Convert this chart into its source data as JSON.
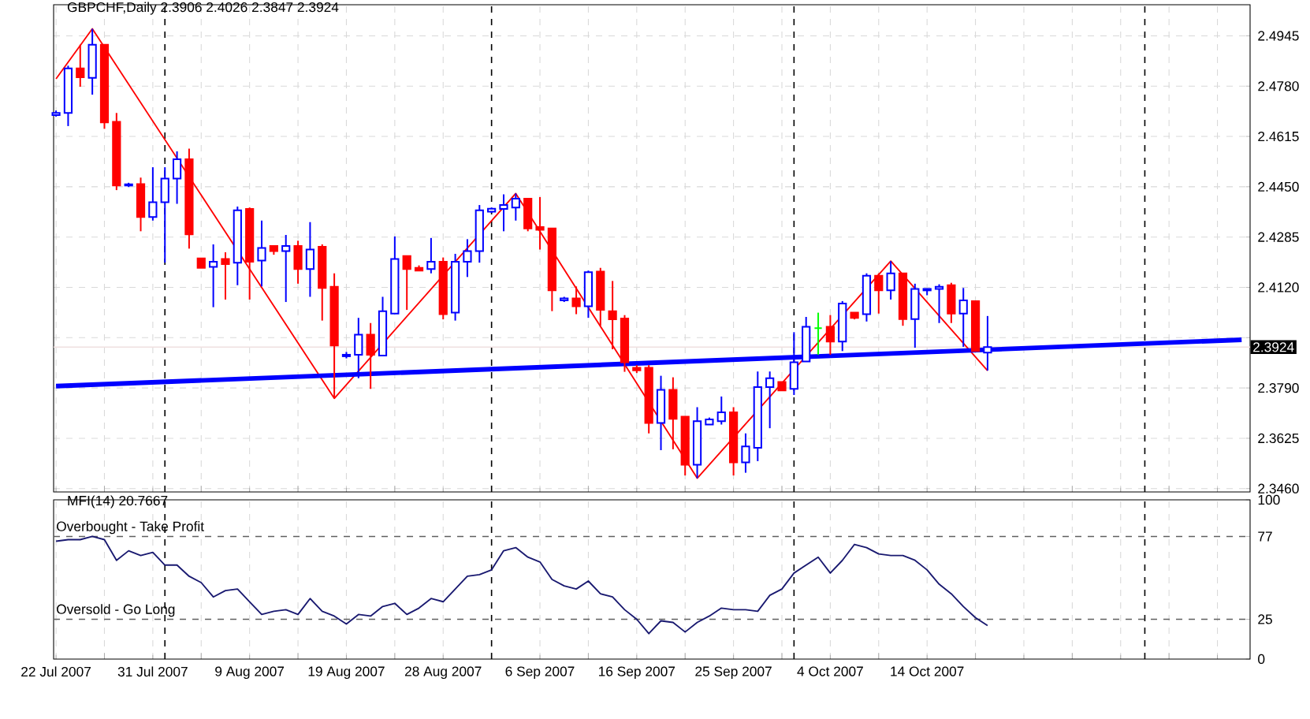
{
  "chart_data": [
    {
      "type": "candlestick",
      "title": "GBPCHF,Daily 2.3906 2.4026 2.3847 2.3924",
      "categories": [
        null,
        null,
        null,
        null,
        null,
        null,
        null,
        null,
        null,
        null,
        null,
        null,
        null,
        null,
        null,
        null,
        null,
        null,
        null,
        null,
        null,
        null,
        null,
        null,
        null,
        null,
        null,
        null,
        null,
        null,
        null,
        null,
        null,
        null,
        null,
        null,
        null,
        null,
        null,
        null,
        null,
        null,
        null,
        null,
        null,
        null,
        null,
        null,
        null,
        null,
        null,
        null,
        null,
        null,
        null,
        null,
        null,
        null,
        null,
        null,
        null,
        null,
        null,
        null,
        null,
        null,
        null,
        null,
        null,
        null,
        null,
        null,
        null,
        null,
        null,
        null,
        null,
        null,
        null,
        null,
        null,
        null,
        null,
        null,
        null,
        null,
        null,
        null,
        null,
        null,
        null,
        null,
        null,
        null,
        null,
        null,
        null,
        null,
        null
      ],
      "ohlc": [
        [
          2.4685,
          2.47,
          2.468,
          2.4692
        ],
        [
          2.4692,
          2.4847,
          2.4649,
          2.4838
        ],
        [
          2.4838,
          2.4916,
          2.4778,
          2.4809
        ],
        [
          2.4807,
          2.4968,
          2.4752,
          2.4916
        ],
        [
          2.4916,
          2.4916,
          2.464,
          2.4661
        ],
        [
          2.4663,
          2.4692,
          2.4439,
          2.4454
        ],
        [
          2.4454,
          2.4463,
          2.4449,
          2.4458
        ],
        [
          2.4459,
          2.448,
          2.4304,
          2.4351
        ],
        [
          2.4351,
          2.4514,
          2.4339,
          2.4399
        ],
        [
          2.4399,
          2.4514,
          2.4201,
          2.4477
        ],
        [
          2.4477,
          2.4566,
          2.4394,
          2.454
        ],
        [
          2.454,
          2.4575,
          2.4247,
          2.4294
        ],
        [
          2.4215,
          2.4215,
          2.4184,
          2.4184
        ],
        [
          2.4187,
          2.4261,
          2.4055,
          2.4204
        ],
        [
          2.4213,
          2.4235,
          2.408,
          2.4196
        ],
        [
          2.4201,
          2.4385,
          2.4127,
          2.4373
        ],
        [
          2.4377,
          2.4382,
          2.408,
          2.4204
        ],
        [
          2.4208,
          2.4339,
          2.4123,
          2.4249
        ],
        [
          2.4256,
          2.4256,
          2.4227,
          2.4239
        ],
        [
          2.4239,
          2.4292,
          2.4072,
          2.4256
        ],
        [
          2.4256,
          2.4273,
          2.4132,
          2.418
        ],
        [
          2.418,
          2.4334,
          2.4089,
          2.4244
        ],
        [
          2.4253,
          2.4261,
          2.4011,
          2.4118
        ],
        [
          2.4122,
          2.4166,
          2.3756,
          2.3929
        ],
        [
          2.3894,
          2.3908,
          2.3887,
          2.3899
        ],
        [
          2.3899,
          2.402,
          2.3822,
          2.3965
        ],
        [
          2.3965,
          2.4003,
          2.3787,
          2.3899
        ],
        [
          2.3896,
          2.4089,
          2.3896,
          2.4042
        ],
        [
          2.4034,
          2.4287,
          2.4034,
          2.4213
        ],
        [
          2.4223,
          2.4223,
          2.4046,
          2.418
        ],
        [
          2.4184,
          2.4192,
          2.4175,
          2.4175
        ],
        [
          2.418,
          2.4282,
          2.4166,
          2.4204
        ],
        [
          2.4204,
          2.4218,
          2.4015,
          2.4032
        ],
        [
          2.4037,
          2.423,
          2.4011,
          2.4204
        ],
        [
          2.4204,
          2.4278,
          2.4154,
          2.4239
        ],
        [
          2.4239,
          2.439,
          2.4201,
          2.4373
        ],
        [
          2.4368,
          2.4382,
          2.4364,
          2.4378
        ],
        [
          2.4377,
          2.4425,
          2.4304,
          2.439
        ],
        [
          2.4382,
          2.4428,
          2.4339,
          2.4411
        ],
        [
          2.4411,
          2.4411,
          2.4304,
          2.4313
        ],
        [
          2.4318,
          2.4416,
          2.4244,
          2.4309
        ],
        [
          2.4313,
          2.4313,
          2.4042,
          2.411
        ],
        [
          2.4077,
          2.4089,
          2.4072,
          2.4084
        ],
        [
          2.4084,
          2.4123,
          2.4032,
          2.4058
        ],
        [
          2.4058,
          2.4175,
          2.402,
          2.417
        ],
        [
          2.4172,
          2.4184,
          2.3994,
          2.4046
        ],
        [
          2.4042,
          2.4141,
          2.3917,
          2.4015
        ],
        [
          2.4018,
          2.4029,
          2.3843,
          2.3874
        ],
        [
          2.3856,
          2.3865,
          2.3839,
          2.3848
        ],
        [
          2.3856,
          2.3865,
          2.3641,
          2.3675
        ],
        [
          2.3675,
          2.383,
          2.3586,
          2.3784
        ],
        [
          2.3784,
          2.3825,
          2.3589,
          2.3689
        ],
        [
          2.3696,
          2.3696,
          2.3503,
          2.3538
        ],
        [
          2.3538,
          2.3727,
          2.3494,
          2.3681
        ],
        [
          2.367,
          2.3693,
          2.367,
          2.3687
        ],
        [
          2.3681,
          2.3762,
          2.367,
          2.371
        ],
        [
          2.371,
          2.3727,
          2.3503,
          2.3546
        ],
        [
          2.3546,
          2.3641,
          2.3512,
          2.3598
        ],
        [
          2.3594,
          2.3844,
          2.355,
          2.3793
        ],
        [
          2.3793,
          2.3844,
          2.3658,
          2.3822
        ],
        [
          2.381,
          2.381,
          2.3782,
          2.3782
        ],
        [
          2.3787,
          2.3973,
          2.3767,
          2.3874
        ],
        [
          2.3877,
          2.4023,
          2.3877,
          2.3991
        ],
        [
          2.3986,
          2.4037,
          2.3899,
          2.3986
        ],
        [
          2.3991,
          2.4029,
          2.3899,
          2.3942
        ],
        [
          2.3942,
          2.4075,
          2.3911,
          2.4067
        ],
        [
          2.4037,
          2.4037,
          2.4015,
          2.402
        ],
        [
          2.4032,
          2.4166,
          2.4008,
          2.4158
        ],
        [
          2.4158,
          2.4166,
          2.4034,
          2.411
        ],
        [
          2.411,
          2.4206,
          2.408,
          2.4166
        ],
        [
          2.4166,
          2.4166,
          2.3994,
          2.4016
        ],
        [
          2.4016,
          2.4132,
          2.3922,
          2.4115
        ],
        [
          2.411,
          2.4115,
          2.4094,
          2.4115
        ],
        [
          2.4115,
          2.413,
          2.4003,
          2.4122
        ],
        [
          2.4127,
          2.4135,
          2.4003,
          2.4034
        ],
        [
          2.4034,
          2.4118,
          2.3925,
          2.4077
        ],
        [
          2.4075,
          2.4075,
          2.3911,
          2.3911
        ],
        [
          2.3906,
          2.4026,
          2.3847,
          2.3924
        ],
        null,
        null,
        null,
        null,
        null,
        null,
        null,
        null,
        null,
        null,
        null,
        null,
        null,
        null,
        null,
        null,
        null,
        null,
        null,
        null,
        null
      ],
      "colors": [
        "#0000ff",
        "#0000ff",
        "#ff0000",
        "#0000ff",
        "#ff0000",
        "#ff0000",
        "#0000ff",
        "#ff0000",
        "#0000ff",
        "#0000ff",
        "#0000ff",
        "#ff0000",
        "#ff0000",
        "#0000ff",
        "#ff0000",
        "#0000ff",
        "#ff0000",
        "#0000ff",
        "#ff0000",
        "#0000ff",
        "#ff0000",
        "#0000ff",
        "#ff0000",
        "#ff0000",
        "#0000ff",
        "#0000ff",
        "#ff0000",
        "#0000ff",
        "#0000ff",
        "#ff0000",
        "#ff0000",
        "#0000ff",
        "#ff0000",
        "#0000ff",
        "#0000ff",
        "#0000ff",
        "#0000ff",
        "#0000ff",
        "#0000ff",
        "#ff0000",
        "#ff0000",
        "#ff0000",
        "#0000ff",
        "#ff0000",
        "#0000ff",
        "#ff0000",
        "#ff0000",
        "#ff0000",
        "#ff0000",
        "#ff0000",
        "#0000ff",
        "#ff0000",
        "#ff0000",
        "#0000ff",
        "#0000ff",
        "#0000ff",
        "#ff0000",
        "#0000ff",
        "#0000ff",
        "#0000ff",
        "#ff0000",
        "#0000ff",
        "#0000ff",
        "#00ff00",
        "#ff0000",
        "#0000ff",
        "#ff0000",
        "#0000ff",
        "#ff0000",
        "#0000ff",
        "#ff0000",
        "#0000ff",
        "#0000ff",
        "#0000ff",
        "#ff0000",
        "#0000ff",
        "#ff0000",
        "#0000ff",
        null,
        null,
        null,
        null,
        null,
        null,
        null,
        null,
        null,
        null,
        null,
        null,
        null,
        null,
        null,
        null,
        null,
        null,
        null,
        null,
        null
      ],
      "series": [
        {
          "type": "line",
          "color": "#ff0000",
          "values": [
            2.4804,
            null,
            null,
            2.4968,
            null,
            null,
            null,
            null,
            null,
            null,
            null,
            null,
            null,
            null,
            null,
            null,
            null,
            null,
            null,
            null,
            null,
            null,
            null,
            2.3756,
            null,
            null,
            null,
            null,
            null,
            null,
            null,
            null,
            null,
            null,
            null,
            null,
            null,
            null,
            2.4428,
            null,
            null,
            null,
            null,
            null,
            null,
            null,
            null,
            null,
            null,
            null,
            null,
            null,
            null,
            2.3494,
            null,
            null,
            null,
            null,
            null,
            null,
            null,
            null,
            null,
            null,
            null,
            null,
            null,
            null,
            null,
            2.4206,
            null,
            null,
            null,
            null,
            null,
            null,
            null,
            2.3847,
            null,
            null,
            null,
            null,
            null,
            null,
            null,
            null,
            null,
            null,
            null,
            null,
            null,
            null,
            null,
            null,
            null,
            null,
            null,
            null,
            null
          ]
        },
        {
          "type": "line",
          "color": "#0000ff",
          "values": [
            2.3796,
            null,
            null,
            null,
            null,
            null,
            null,
            null,
            null,
            null,
            null,
            null,
            null,
            null,
            null,
            null,
            null,
            null,
            null,
            null,
            null,
            null,
            null,
            null,
            null,
            null,
            null,
            null,
            null,
            null,
            null,
            null,
            null,
            null,
            null,
            null,
            null,
            null,
            null,
            null,
            null,
            null,
            null,
            null,
            null,
            null,
            null,
            null,
            null,
            null,
            null,
            null,
            null,
            null,
            null,
            null,
            null,
            null,
            null,
            null,
            null,
            null,
            null,
            null,
            null,
            null,
            null,
            null,
            null,
            null,
            null,
            null,
            null,
            null,
            null,
            null,
            null,
            null,
            null,
            null,
            null,
            null,
            null,
            null,
            null,
            null,
            null,
            null,
            null,
            null,
            null,
            null,
            null,
            null,
            null,
            null,
            null,
            null,
            2.3948
          ]
        }
      ],
      "ylim": [
        2.3449,
        2.5047
      ],
      "yticks": [
        {
          "value": 2.346,
          "label": "2.3460"
        },
        2.3625,
        {
          "value": 2.379,
          "label": "2.3790"
        },
        {
          "value": 2.3955,
          "label": null
        },
        {
          "value": 2.412,
          "label": "2.4120"
        },
        2.4285,
        {
          "value": 2.445,
          "label": "2.4450"
        },
        2.4615,
        {
          "value": 2.478,
          "label": "2.4780"
        },
        2.4945
      ],
      "ref_lines": [
        {
          "axis": "y",
          "value": 2.3924,
          "label": "2.3924",
          "color": "#f0e0e0",
          "line_style": "solid"
        }
      ],
      "grid": true,
      "tick_labels": "y"
    },
    {
      "type": "line",
      "title": "MFI(14) 20.7667",
      "series": [
        {
          "color": "#191970",
          "values": [
            74,
            75,
            75,
            77,
            75,
            62,
            68,
            65,
            67,
            59,
            59,
            52,
            48,
            39,
            43,
            44,
            36,
            28,
            30,
            31,
            28,
            38,
            30,
            27,
            22,
            28,
            27,
            33,
            35,
            28,
            32,
            38,
            36,
            44,
            52,
            53,
            56,
            68,
            70,
            64,
            61,
            50,
            46,
            44,
            49,
            41,
            39,
            31,
            25,
            16,
            24,
            23,
            17,
            23,
            27,
            32,
            31,
            31,
            30,
            40,
            44,
            54,
            59,
            64,
            54,
            62,
            72,
            70,
            66,
            65,
            65,
            62,
            56,
            47,
            41,
            33,
            26,
            21,
            null,
            null,
            null,
            null,
            null,
            null,
            null,
            null,
            null,
            null,
            null,
            null,
            null,
            null,
            null,
            null,
            null,
            null,
            null,
            null,
            null
          ]
        }
      ],
      "categories": [
        "22 Jul 2007",
        null,
        null,
        null,
        null,
        null,
        null,
        null,
        "31 Jul 2007",
        null,
        null,
        null,
        null,
        null,
        null,
        null,
        "9 Aug 2007",
        null,
        null,
        null,
        null,
        null,
        null,
        null,
        "19 Aug 2007",
        null,
        null,
        null,
        null,
        null,
        null,
        null,
        "28 Aug 2007",
        null,
        null,
        null,
        null,
        null,
        null,
        null,
        "6 Sep 2007",
        null,
        null,
        null,
        null,
        null,
        null,
        null,
        "16 Sep 2007",
        null,
        null,
        null,
        null,
        null,
        null,
        null,
        "25 Sep 2007",
        null,
        null,
        null,
        null,
        null,
        null,
        null,
        "4 Oct 2007",
        null,
        null,
        null,
        null,
        null,
        null,
        null,
        "14 Oct 2007",
        null,
        null,
        null,
        null,
        null,
        null,
        null,
        null,
        null,
        null,
        null,
        null,
        null,
        null,
        null,
        null,
        null,
        null,
        null,
        null,
        null,
        null,
        null,
        null,
        null,
        null
      ],
      "ylim": [
        0,
        100
      ],
      "yticks": [
        0,
        25,
        77,
        100
      ],
      "ref_lines": [
        {
          "axis": "y",
          "value": 77,
          "label": "Overbought - Take Profit",
          "color": "#606060",
          "line_style": "dashed"
        },
        {
          "axis": "y",
          "value": 25,
          "label": "Oversold - Go Long",
          "color": "#606060",
          "line_style": "dashed"
        }
      ],
      "grid": "x"
    }
  ]
}
